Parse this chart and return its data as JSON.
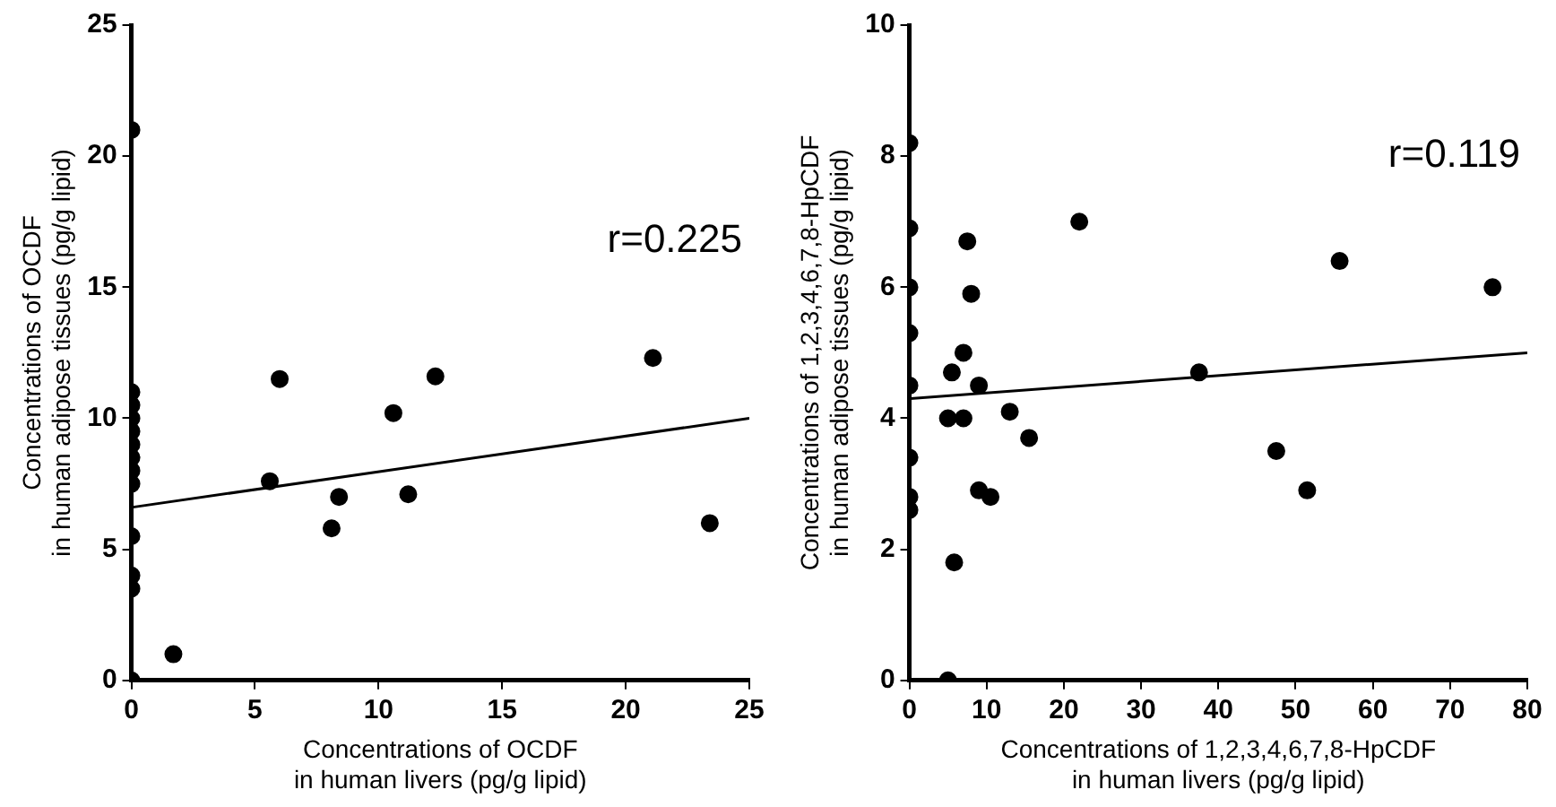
{
  "chart_data": [
    {
      "type": "scatter",
      "xlabel": "Concentrations of OCDF\nin human livers (pg/g lipid)",
      "ylabel": "Concentrations of OCDF\nin human adipose tissues (pg/g lipid)",
      "annotations": [
        "r=0.225"
      ],
      "xlim": [
        0,
        25
      ],
      "ylim": [
        0,
        25
      ],
      "xticks": [
        0,
        5,
        10,
        15,
        20,
        25
      ],
      "yticks": [
        0,
        5,
        10,
        15,
        20,
        25
      ],
      "grid": false,
      "legend": false,
      "series": [
        {
          "color": "#000000",
          "marker": "circle",
          "x": [
            0,
            0,
            0,
            0,
            0,
            0,
            0,
            0,
            0,
            0,
            0,
            0,
            0,
            1.7,
            5.6,
            6.0,
            8.1,
            8.4,
            10.6,
            11.2,
            12.3,
            21.1,
            23.4
          ],
          "values": [
            21,
            11,
            10.5,
            10,
            9.5,
            9,
            8.5,
            8,
            7.5,
            5.5,
            4,
            3.5,
            0,
            1.0,
            7.6,
            11.5,
            5.8,
            7.0,
            10.2,
            7.1,
            11.6,
            12.3,
            6.0
          ]
        },
        {
          "type": "line",
          "color": "#000000",
          "marker": "none",
          "x": [
            0,
            25
          ],
          "values": [
            6.6,
            10.0
          ]
        }
      ]
    },
    {
      "type": "scatter",
      "xlabel": "Concentrations of 1,2,3,4,6,7,8-HpCDF\nin human livers (pg/g lipid)",
      "ylabel": "Concentrations of 1,2,3,4,6,7,8-HpCDF\nin human adipose tissues (pg/g lipid)",
      "annotations": [
        "r=0.119"
      ],
      "xlim": [
        0,
        80
      ],
      "ylim": [
        0,
        10
      ],
      "xticks": [
        0,
        10,
        20,
        30,
        40,
        50,
        60,
        70,
        80
      ],
      "yticks": [
        0,
        2,
        4,
        6,
        8,
        10
      ],
      "grid": false,
      "legend": false,
      "series": [
        {
          "color": "#000000",
          "marker": "circle",
          "x": [
            0,
            0,
            0,
            0,
            0,
            0,
            0,
            0,
            5.0,
            5.8,
            5.0,
            5.5,
            7.0,
            7.0,
            7.5,
            8.0,
            9.0,
            9.0,
            10.5,
            13.0,
            15.5,
            22.0,
            37.5,
            47.5,
            51.5,
            55.7,
            75.5
          ],
          "values": [
            8.2,
            6.9,
            6.0,
            5.3,
            4.5,
            3.4,
            2.8,
            2.6,
            0.0,
            1.8,
            4.0,
            4.7,
            4.0,
            5.0,
            6.7,
            5.9,
            4.5,
            2.9,
            2.8,
            4.1,
            3.7,
            7.0,
            4.7,
            3.5,
            2.9,
            6.4,
            6.0
          ]
        },
        {
          "type": "line",
          "color": "#000000",
          "marker": "none",
          "x": [
            0,
            80
          ],
          "values": [
            4.3,
            5.0
          ]
        }
      ]
    }
  ]
}
